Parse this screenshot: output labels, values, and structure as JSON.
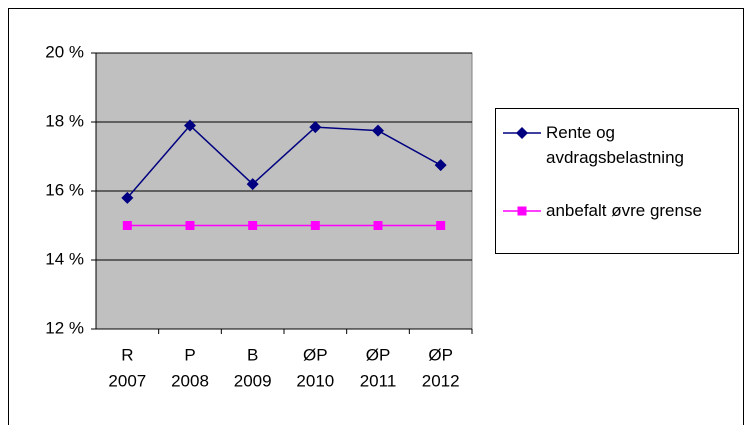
{
  "chart_data": {
    "type": "line",
    "categories": [
      [
        "R",
        "2007"
      ],
      [
        "P",
        "2008"
      ],
      [
        "B",
        "2009"
      ],
      [
        "ØP",
        "2010"
      ],
      [
        "ØP",
        "2011"
      ],
      [
        "ØP",
        "2012"
      ]
    ],
    "series": [
      {
        "name": "Rente og avdragsbelastning",
        "color": "#000080",
        "marker": "diamond",
        "values": [
          15.8,
          17.9,
          16.2,
          17.85,
          17.75,
          16.75
        ]
      },
      {
        "name": "anbefalt øvre grense",
        "color": "#ff00ff",
        "marker": "square",
        "values": [
          15,
          15,
          15,
          15,
          15,
          15
        ]
      }
    ],
    "ylim": [
      12,
      20
    ],
    "yticks": [
      {
        "value": 12,
        "label": "12 %"
      },
      {
        "value": 14,
        "label": "14 %"
      },
      {
        "value": 16,
        "label": "16 %"
      },
      {
        "value": 18,
        "label": "18 %"
      },
      {
        "value": 20,
        "label": "20 %"
      }
    ],
    "grid": true,
    "legend": "right",
    "plot_background": "#c0c0c0"
  }
}
